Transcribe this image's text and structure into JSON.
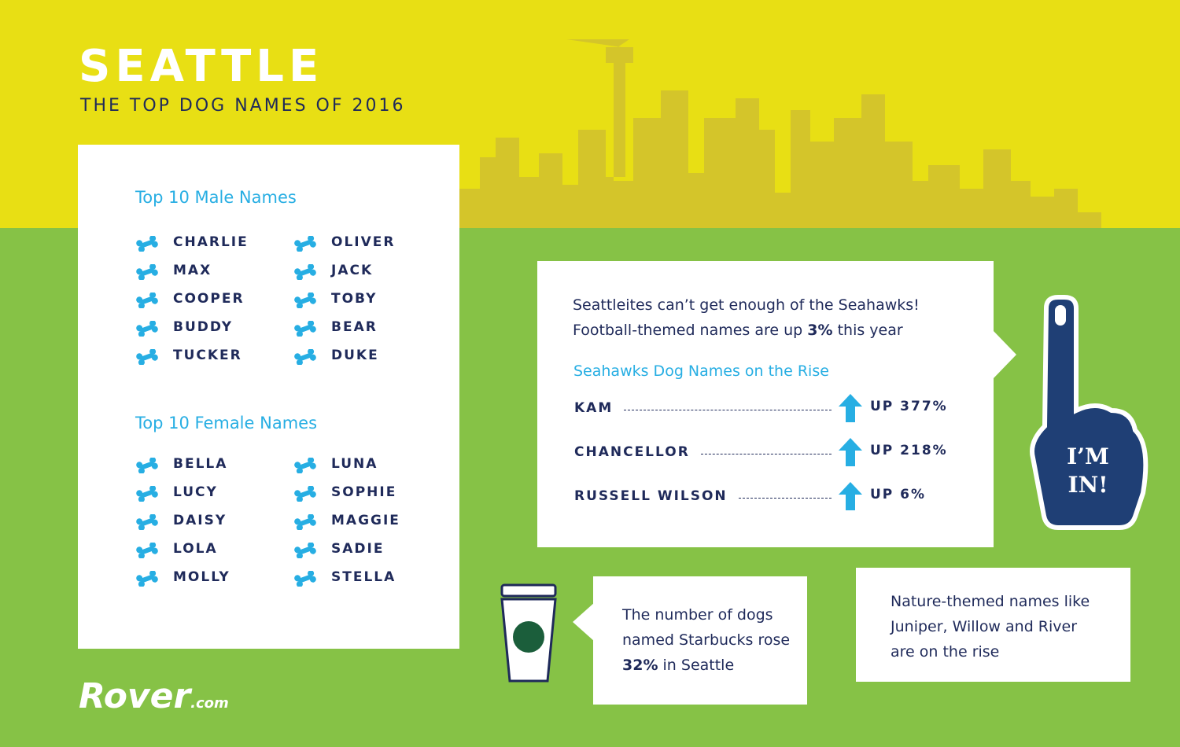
{
  "header": {
    "title": "SEATTLE",
    "subtitle": "THE TOP DOG NAMES OF 2016"
  },
  "male": {
    "heading": "Top 10 Male Names",
    "names": [
      "CHARLIE",
      "MAX",
      "COOPER",
      "BUDDY",
      "TUCKER",
      "OLIVER",
      "JACK",
      "TOBY",
      "BEAR",
      "DUKE"
    ]
  },
  "female": {
    "heading": "Top 10 Female Names",
    "names": [
      "BELLA",
      "LUCY",
      "DAISY",
      "LOLA",
      "MOLLY",
      "LUNA",
      "SOPHIE",
      "MAGGIE",
      "SADIE",
      "STELLA"
    ]
  },
  "seahawks": {
    "line1": "Seattleites can’t get enough of the Seahawks!",
    "line2": [
      "Football-themed names are up ",
      "3%",
      " this year"
    ],
    "heading": "Seahawks Dog Names on the Rise",
    "rising": [
      {
        "name": "KAM",
        "change": "UP 377%"
      },
      {
        "name": "CHANCELLOR",
        "change": "UP 218%"
      },
      {
        "name": "RUSSELL WILSON",
        "change": "UP 6%"
      }
    ]
  },
  "finger": {
    "line1": "I’M",
    "line2": "IN!"
  },
  "starbucks": {
    "parts": [
      "The number of dogs named Starbucks rose ",
      "32%",
      " in Seattle"
    ]
  },
  "nature": {
    "text": "Nature-themed names like Juniper, Willow and River are on the rise"
  },
  "logo": {
    "name": "Rover",
    "suffix": ".com"
  }
}
